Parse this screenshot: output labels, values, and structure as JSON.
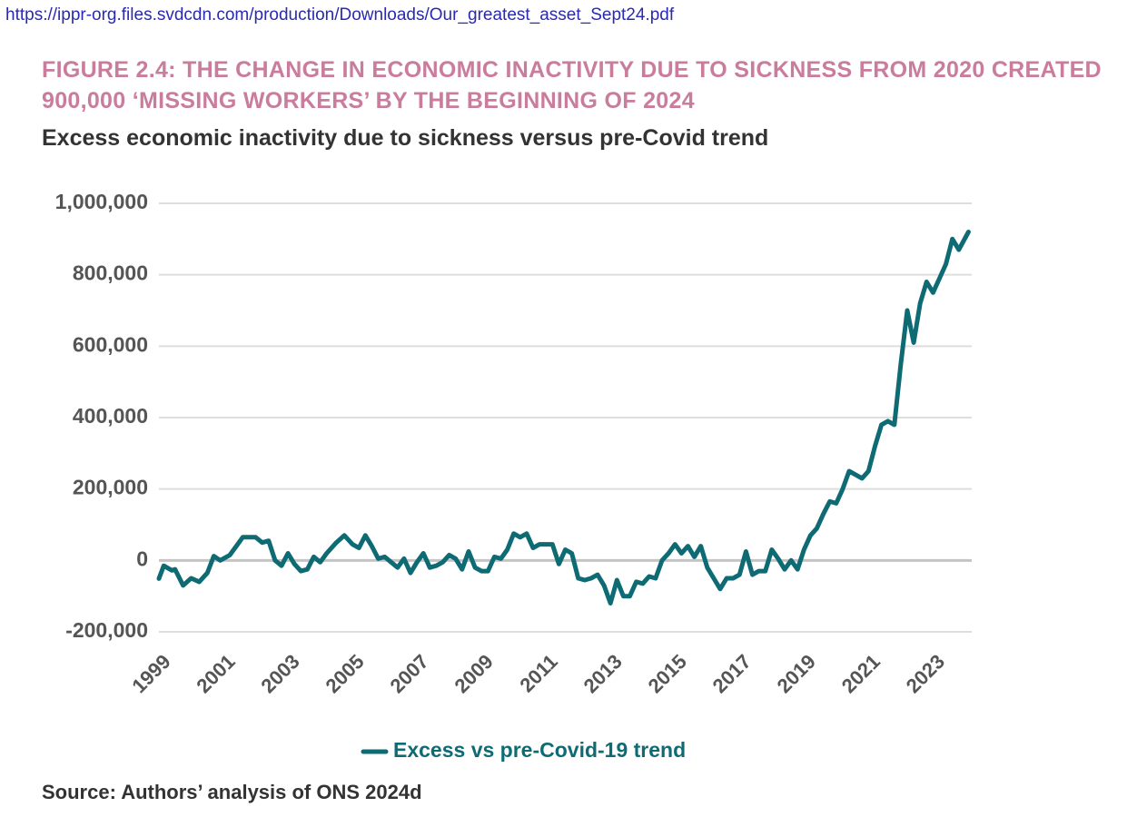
{
  "url": "https://ippr-org.files.svdcdn.com/production/Downloads/Our_greatest_asset_Sept24.pdf",
  "chart_data": {
    "type": "line",
    "title": "FIGURE 2.4: THE CHANGE IN ECONOMIC INACTIVITY DUE TO SICKNESS FROM 2020 CREATED 900,000 ‘MISSING WORKERS’ BY THE BEGINNING OF 2024",
    "subtitle": "Excess economic inactivity due to sickness versus pre-Covid trend",
    "source": "Source: Authors’ analysis of ONS 2024d",
    "x": [
      1999.0,
      1999.15,
      1999.4,
      1999.5,
      1999.75,
      2000.0,
      2000.25,
      2000.5,
      2000.7,
      2000.9,
      2001.2,
      2001.4,
      2001.6,
      2002.0,
      2002.2,
      2002.4,
      2002.6,
      2002.8,
      2003.0,
      2003.2,
      2003.4,
      2003.6,
      2003.8,
      2004.0,
      2004.2,
      2004.5,
      2004.75,
      2005.0,
      2005.2,
      2005.4,
      2005.6,
      2005.8,
      2006.0,
      2006.2,
      2006.4,
      2006.6,
      2006.8,
      2007.0,
      2007.2,
      2007.4,
      2007.6,
      2007.8,
      2008.0,
      2008.2,
      2008.4,
      2008.6,
      2008.8,
      2009.0,
      2009.2,
      2009.4,
      2009.6,
      2009.8,
      2010.0,
      2010.2,
      2010.4,
      2010.6,
      2010.8,
      2011.0,
      2011.2,
      2011.4,
      2011.6,
      2011.8,
      2012.0,
      2012.2,
      2012.4,
      2012.6,
      2012.8,
      2013.0,
      2013.2,
      2013.4,
      2013.6,
      2013.8,
      2014.0,
      2014.2,
      2014.4,
      2014.6,
      2014.8,
      2015.0,
      2015.2,
      2015.4,
      2015.6,
      2015.8,
      2016.0,
      2016.2,
      2016.4,
      2016.6,
      2016.8,
      2017.0,
      2017.2,
      2017.4,
      2017.6,
      2017.8,
      2018.0,
      2018.2,
      2018.4,
      2018.6,
      2018.8,
      2019.0,
      2019.2,
      2019.4,
      2019.6,
      2019.8,
      2020.0,
      2020.2,
      2020.4,
      2020.6,
      2020.8,
      2021.0,
      2021.2,
      2021.4,
      2021.6,
      2021.8,
      2022.0,
      2022.2,
      2022.4,
      2022.6,
      2022.8,
      2023.0,
      2023.2,
      2023.4,
      2023.6,
      2023.8,
      2024.1
    ],
    "series": [
      {
        "name": "Excess vs pre-Covid-19 trend",
        "color": "#0e6b73",
        "values": [
          -51000,
          -15000,
          -28000,
          -25000,
          -70000,
          -50000,
          -60000,
          -35000,
          12000,
          0,
          15000,
          40000,
          65000,
          65000,
          50000,
          55000,
          0,
          -15000,
          20000,
          -10000,
          -30000,
          -25000,
          10000,
          -5000,
          20000,
          50000,
          70000,
          45000,
          35000,
          70000,
          40000,
          5000,
          10000,
          -5000,
          -20000,
          5000,
          -35000,
          -5000,
          20000,
          -20000,
          -15000,
          -5000,
          15000,
          5000,
          -25000,
          25000,
          -20000,
          -30000,
          -30000,
          10000,
          5000,
          30000,
          75000,
          65000,
          75000,
          35000,
          45000,
          45000,
          45000,
          -10000,
          30000,
          20000,
          -50000,
          -55000,
          -50000,
          -40000,
          -70000,
          -120000,
          -55000,
          -100000,
          -100000,
          -60000,
          -65000,
          -45000,
          -50000,
          0,
          20000,
          45000,
          20000,
          40000,
          10000,
          40000,
          -20000,
          -50000,
          -80000,
          -50000,
          -50000,
          -40000,
          25000,
          -40000,
          -30000,
          -30000,
          30000,
          5000,
          -25000,
          0,
          -25000,
          30000,
          70000,
          90000,
          130000,
          165000,
          160000,
          200000,
          250000,
          240000,
          230000,
          250000,
          320000,
          380000,
          390000,
          380000,
          550000,
          700000,
          610000,
          720000,
          780000,
          750000,
          790000,
          830000,
          900000,
          870000,
          920000
        ]
      }
    ],
    "xlim": [
      1999,
      2024.2
    ],
    "xticks": [
      1999,
      2001,
      2003,
      2005,
      2007,
      2009,
      2011,
      2013,
      2015,
      2017,
      2019,
      2021,
      2023
    ],
    "ylim": [
      -200000,
      1000000
    ],
    "yticks": [
      {
        "value": -200000,
        "label": "-200,000"
      },
      0,
      {
        "value": 200000,
        "label": "200,000"
      },
      {
        "value": 400000,
        "label": "400,000"
      },
      {
        "value": 600000,
        "label": "600,000"
      },
      {
        "value": 800000,
        "label": "800,000"
      },
      {
        "value": 1000000,
        "label": "1,000,000"
      }
    ],
    "grid": true,
    "legend": "bottom"
  }
}
